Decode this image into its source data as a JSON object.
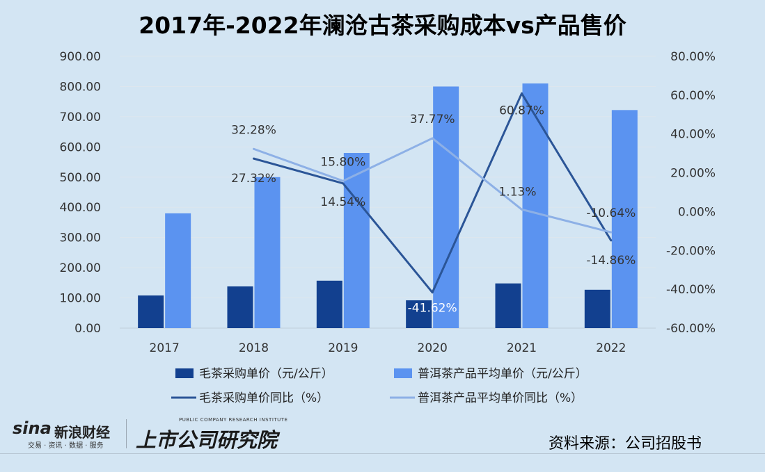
{
  "chart_data": {
    "type": "bar+line",
    "title": "2017年-2022年澜沧古茶采购成本vs产品售价",
    "categories": [
      "2017",
      "2018",
      "2019",
      "2020",
      "2021",
      "2022"
    ],
    "bar_series": [
      {
        "name": "毛茶采购单价（元/公斤）",
        "color": "#12408f",
        "values": [
          108,
          138,
          157,
          92,
          148,
          127
        ]
      },
      {
        "name": "普洱茶产品平均单价（元/公斤）",
        "color": "#5b93f0",
        "values": [
          380,
          500,
          580,
          800,
          810,
          722
        ]
      }
    ],
    "line_series": [
      {
        "name": "毛茶采购单价同比（%）",
        "color": "#2b5597",
        "values": [
          null,
          27.32,
          14.54,
          -41.62,
          60.87,
          -14.86
        ],
        "labels": [
          "",
          "27.32%",
          "14.54%",
          "-41.62%",
          "60.87%",
          "-14.86%"
        ]
      },
      {
        "name": "普洱茶产品平均单价同比（%）",
        "color": "#8db0e6",
        "values": [
          null,
          32.28,
          15.8,
          37.77,
          1.13,
          -10.64
        ],
        "labels": [
          "",
          "32.28%",
          "15.80%",
          "37.77%",
          "1.13%",
          "-10.64%"
        ]
      }
    ],
    "y_left": {
      "min": 0,
      "max": 900,
      "step": 100,
      "tick_labels": [
        "0.00",
        "100.00",
        "200.00",
        "300.00",
        "400.00",
        "500.00",
        "600.00",
        "700.00",
        "800.00",
        "900.00"
      ]
    },
    "y_right": {
      "min": -60,
      "max": 80,
      "step": 20,
      "tick_labels": [
        "-60.00%",
        "-40.00%",
        "-20.00%",
        "0.00%",
        "20.00%",
        "40.00%",
        "60.00%",
        "80.00%"
      ]
    },
    "legend_position": "bottom",
    "grid": true
  },
  "footer": {
    "source": "资料来源：公司招股书",
    "sina_brand": "sina",
    "sina_brand_cn": "新浪财经",
    "sina_sub": "交易 · 资讯 · 数据 · 服务",
    "institute_en": "PUBLIC COMPANY RESEARCH INSTITUTE",
    "institute_cn": "上市公司研究院"
  }
}
